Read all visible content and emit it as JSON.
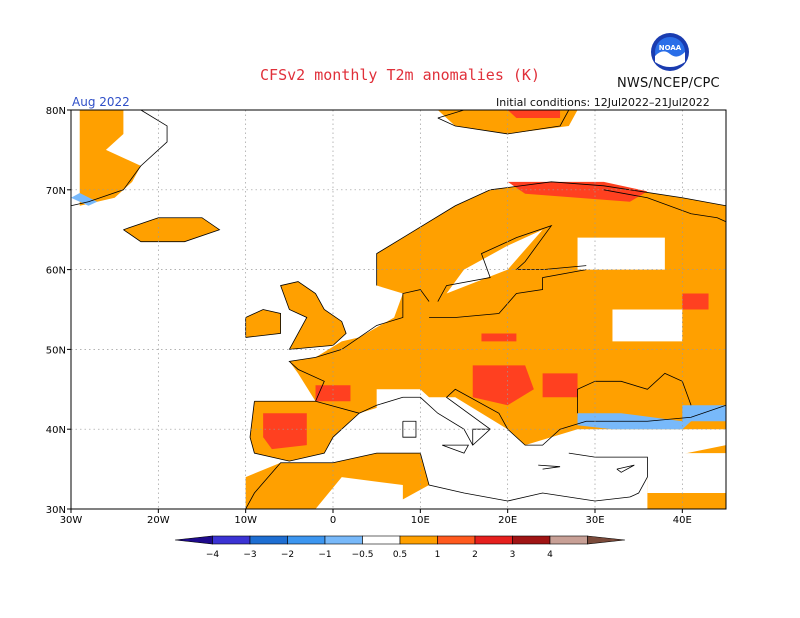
{
  "header": {
    "title": "CFSv2 monthly T2m anomalies (K)",
    "organization": "NWS/NCEP/CPC",
    "valid_month": "Aug 2022",
    "initial_conditions": "Initial conditions: 12Jul2022–21Jul2022",
    "logo_text": "NOAA"
  },
  "map": {
    "lat_labels": [
      "80N",
      "70N",
      "60N",
      "50N",
      "40N",
      "30N"
    ],
    "lon_labels": [
      "30W",
      "20W",
      "10W",
      "0",
      "10E",
      "20E",
      "30E",
      "40E"
    ],
    "lon_range": [
      -30,
      45
    ],
    "lat_range": [
      30,
      80
    ]
  },
  "colorbar": {
    "tick_labels": [
      "−4",
      "−3",
      "−2",
      "−1",
      "−0.5",
      "0.5",
      "1",
      "2",
      "3",
      "4"
    ],
    "bins": [
      {
        "range": "<-4",
        "color": "#1e0a8c"
      },
      {
        "range": "-4..-3",
        "color": "#3b33d4"
      },
      {
        "range": "-3..-2",
        "color": "#1e6ed2"
      },
      {
        "range": "-2..-1",
        "color": "#3c96f0"
      },
      {
        "range": "-1..-0.5",
        "color": "#78b9fa"
      },
      {
        "range": "-0.5..0.5",
        "color": "#ffffff"
      },
      {
        "range": "0.5..1",
        "color": "#ffa000"
      },
      {
        "range": "1..2",
        "color": "#ff5a1e"
      },
      {
        "range": "2..3",
        "color": "#e6201e"
      },
      {
        "range": "3..4",
        "color": "#a01414"
      },
      {
        "range": "4..",
        "color": "#c8a096"
      },
      {
        "range": ">4",
        "color": "#7a4a3a"
      }
    ]
  },
  "colors": {
    "warm_light": "#ffa000",
    "warm_mid": "#ff4020",
    "warm_strong": "#b81418",
    "cool_light": "#78b9fa",
    "cool_mid": "#3c96f0"
  }
}
